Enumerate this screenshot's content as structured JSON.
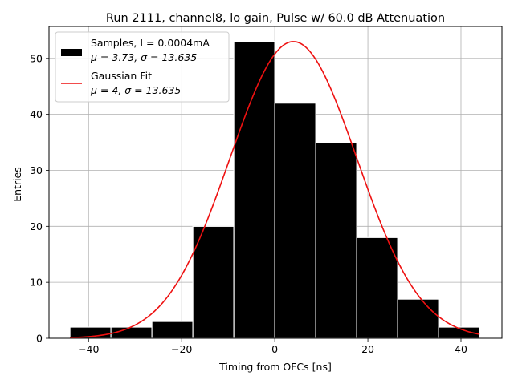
{
  "chart_data": {
    "type": "bar",
    "title": "Run 2111, channel8, lo gain, Pulse w/ 60.0 dB Attenuation",
    "xlabel": "Timing from OFCs [ns]",
    "ylabel": "Entries",
    "xlim": [
      -48.5,
      48.8
    ],
    "ylim": [
      0,
      55.7
    ],
    "xticks": [
      -40,
      -20,
      0,
      20,
      40
    ],
    "xtick_labels": [
      "−40",
      "−20",
      "0",
      "20",
      "40"
    ],
    "yticks": [
      0,
      10,
      20,
      30,
      40,
      50
    ],
    "ytick_labels": [
      "0",
      "10",
      "20",
      "30",
      "40",
      "50"
    ],
    "grid": true,
    "legend_position": "top-left",
    "histogram": {
      "name": "Samples, I = 0.0004mA",
      "stats": "μ = 3.73, σ = 13.635",
      "color": "#000000",
      "edge_color": "#ffffff",
      "bins": [
        {
          "start": -44.0,
          "end": -35.2,
          "count": 2
        },
        {
          "start": -35.2,
          "end": -26.4,
          "count": 2
        },
        {
          "start": -26.4,
          "end": -17.6,
          "count": 3
        },
        {
          "start": -17.6,
          "end": -8.8,
          "count": 20
        },
        {
          "start": -8.8,
          "end": 0.0,
          "count": 53
        },
        {
          "start": 0.0,
          "end": 8.8,
          "count": 42
        },
        {
          "start": 8.8,
          "end": 17.6,
          "count": 35
        },
        {
          "start": 17.6,
          "end": 26.4,
          "count": 18
        },
        {
          "start": 26.4,
          "end": 35.2,
          "count": 7
        },
        {
          "start": 35.2,
          "end": 44.0,
          "count": 2
        }
      ]
    },
    "fit": {
      "name": "Gaussian Fit",
      "stats": "μ = 4, σ = 13.635",
      "type": "gaussian",
      "amplitude": 53,
      "mu": 4,
      "sigma": 13.635,
      "x_range": [
        -44,
        44
      ],
      "color": "#ee1111"
    }
  }
}
